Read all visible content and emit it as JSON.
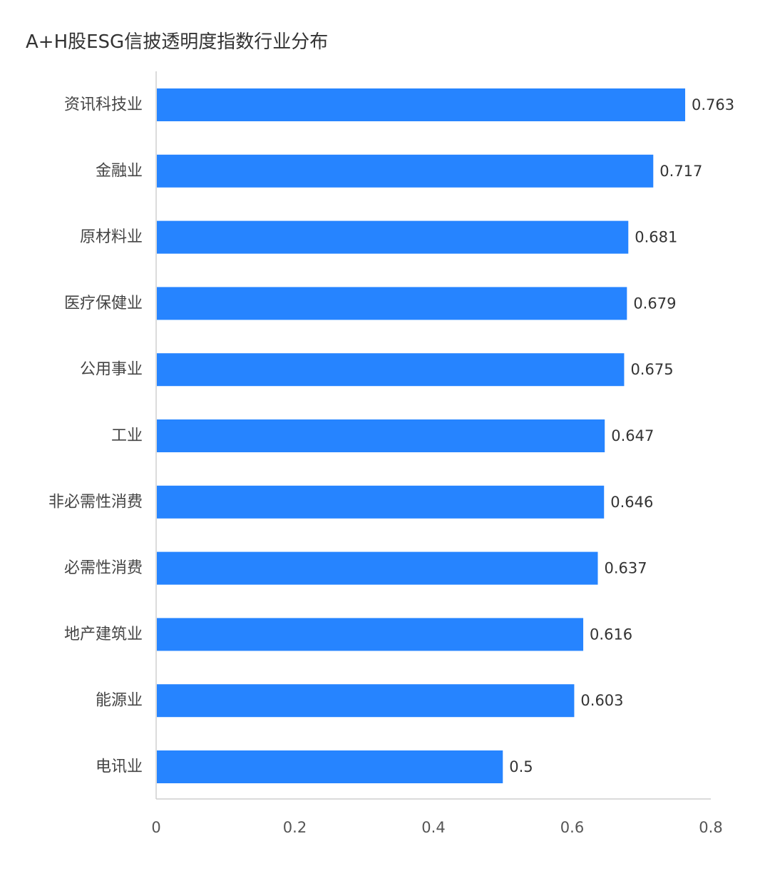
{
  "chart_data": {
    "type": "bar",
    "orientation": "horizontal",
    "title": "A+H股ESG信披透明度指数行业分布",
    "categories": [
      "资讯科技业",
      "金融业",
      "原材料业",
      "医疗保健业",
      "公用事业",
      "工业",
      "非必需性消费",
      "必需性消费",
      "地产建筑业",
      "能源业",
      "电讯业"
    ],
    "values": [
      0.763,
      0.717,
      0.681,
      0.679,
      0.675,
      0.647,
      0.646,
      0.637,
      0.616,
      0.603,
      0.5
    ],
    "value_labels": [
      "0.763",
      "0.717",
      "0.681",
      "0.679",
      "0.675",
      "0.647",
      "0.646",
      "0.637",
      "0.616",
      "0.603",
      "0.5"
    ],
    "xlim": [
      0,
      0.8
    ],
    "xticks": [
      0,
      0.2,
      0.4,
      0.6,
      0.8
    ],
    "xtick_labels": [
      "0",
      "0.2",
      "0.4",
      "0.6",
      "0.8"
    ],
    "xlabel": "",
    "ylabel": "",
    "grid": false,
    "legend": "none",
    "bar_color": "#2684FF"
  }
}
